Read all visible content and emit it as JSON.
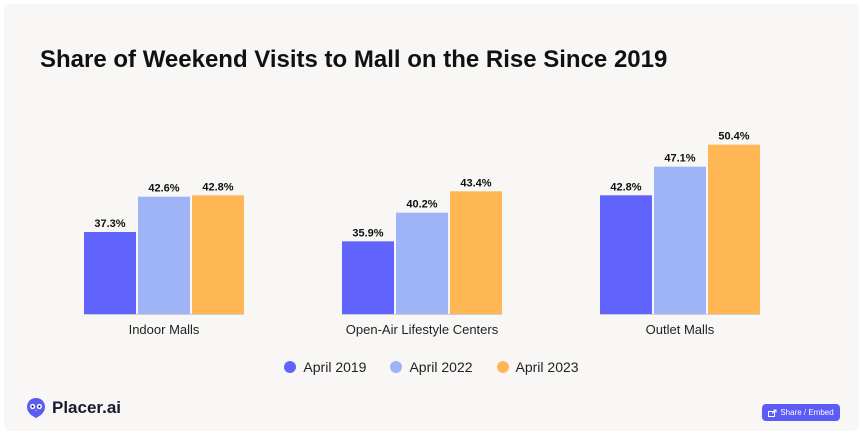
{
  "title": "Share of Weekend Visits to Mall on the Rise Since 2019",
  "brand": {
    "name": "Placer.ai",
    "logo_icon": "placer-owl-logo-icon"
  },
  "share_button": {
    "label": "Share / Embed",
    "icon": "share-icon"
  },
  "colors": {
    "April 2019": "#6163fd",
    "April 2022": "#9fb3f7",
    "April 2023": "#ffb755",
    "card_bg": "#f8f7f5",
    "button": "#5b5bf5"
  },
  "chart_data": {
    "type": "bar",
    "title": "Share of Weekend Visits to Mall on the Rise Since 2019",
    "categories": [
      "Indoor Malls",
      "Open-Air Lifestyle Centers",
      "Outlet Malls"
    ],
    "series": [
      {
        "name": "April 2019",
        "values": [
          37.3,
          35.9,
          42.8
        ],
        "labels": [
          "37.3%",
          "35.9%",
          "42.8%"
        ]
      },
      {
        "name": "April 2022",
        "values": [
          42.6,
          40.2,
          47.1
        ],
        "labels": [
          "42.6%",
          "40.2%",
          "47.1%"
        ]
      },
      {
        "name": "April 2023",
        "values": [
          42.8,
          43.4,
          50.4
        ],
        "labels": [
          "42.8%",
          "43.4%",
          "50.4%"
        ]
      }
    ],
    "ylim": [
      25,
      52
    ],
    "grid": false,
    "legend": "bottom-center",
    "xlabel": "",
    "ylabel": ""
  }
}
